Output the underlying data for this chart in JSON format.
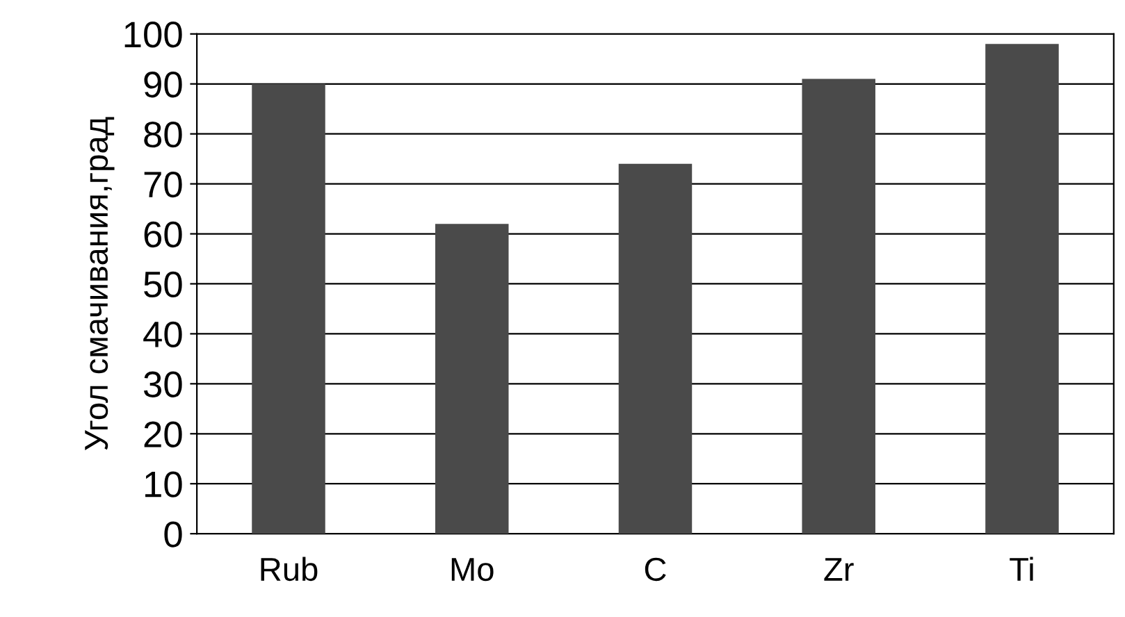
{
  "chart_data": {
    "type": "bar",
    "ylabel": "Угол смачивания,град",
    "categories": [
      "Rub",
      "Mo",
      "C",
      "Zr",
      "Ti"
    ],
    "values": [
      90,
      62,
      74,
      91,
      98
    ],
    "color": "#4a4a4a",
    "ylim": [
      0,
      100
    ],
    "yticks": [
      0,
      10,
      20,
      30,
      40,
      50,
      60,
      70,
      80,
      90,
      100
    ],
    "grid": "y",
    "legend": false
  }
}
